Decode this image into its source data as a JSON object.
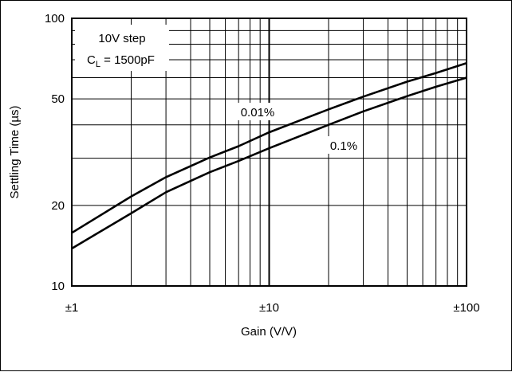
{
  "chart_data": {
    "type": "line",
    "title": "",
    "xlabel": "Gain (V/V)",
    "ylabel": "Settling Time (µs)",
    "x_scale": "log",
    "y_scale": "log",
    "xlim": [
      1,
      100
    ],
    "ylim": [
      10,
      100
    ],
    "grid": true,
    "x_ticks": [
      {
        "value": 1,
        "label": "±1"
      },
      {
        "value": 10,
        "label": "±10"
      },
      {
        "value": 100,
        "label": "±100"
      }
    ],
    "y_ticks": [
      {
        "value": 10,
        "label": "10"
      },
      {
        "value": 20,
        "label": "20"
      },
      {
        "value": 50,
        "label": "50"
      },
      {
        "value": 100,
        "label": "100"
      }
    ],
    "series": [
      {
        "name": "0.01%",
        "x": [
          1,
          2,
          3,
          5,
          7,
          10,
          20,
          30,
          50,
          70,
          100
        ],
        "y": [
          15.8,
          21.6,
          25.5,
          30.2,
          33.3,
          37.5,
          45.7,
          51.0,
          58.0,
          62.5,
          68.0
        ]
      },
      {
        "name": "0.1%",
        "x": [
          1,
          2,
          3,
          5,
          7,
          10,
          20,
          30,
          50,
          70,
          100
        ],
        "y": [
          13.8,
          18.7,
          22.4,
          26.6,
          29.3,
          32.7,
          40.0,
          44.9,
          51.2,
          55.5,
          60.0
        ]
      }
    ],
    "annotations": [
      {
        "id": "step",
        "text": "10V step"
      },
      {
        "id": "cl_base",
        "text": "C"
      },
      {
        "id": "cl_sub",
        "text": "L"
      },
      {
        "id": "cl_rest",
        "text": " = 1500pF"
      }
    ]
  }
}
